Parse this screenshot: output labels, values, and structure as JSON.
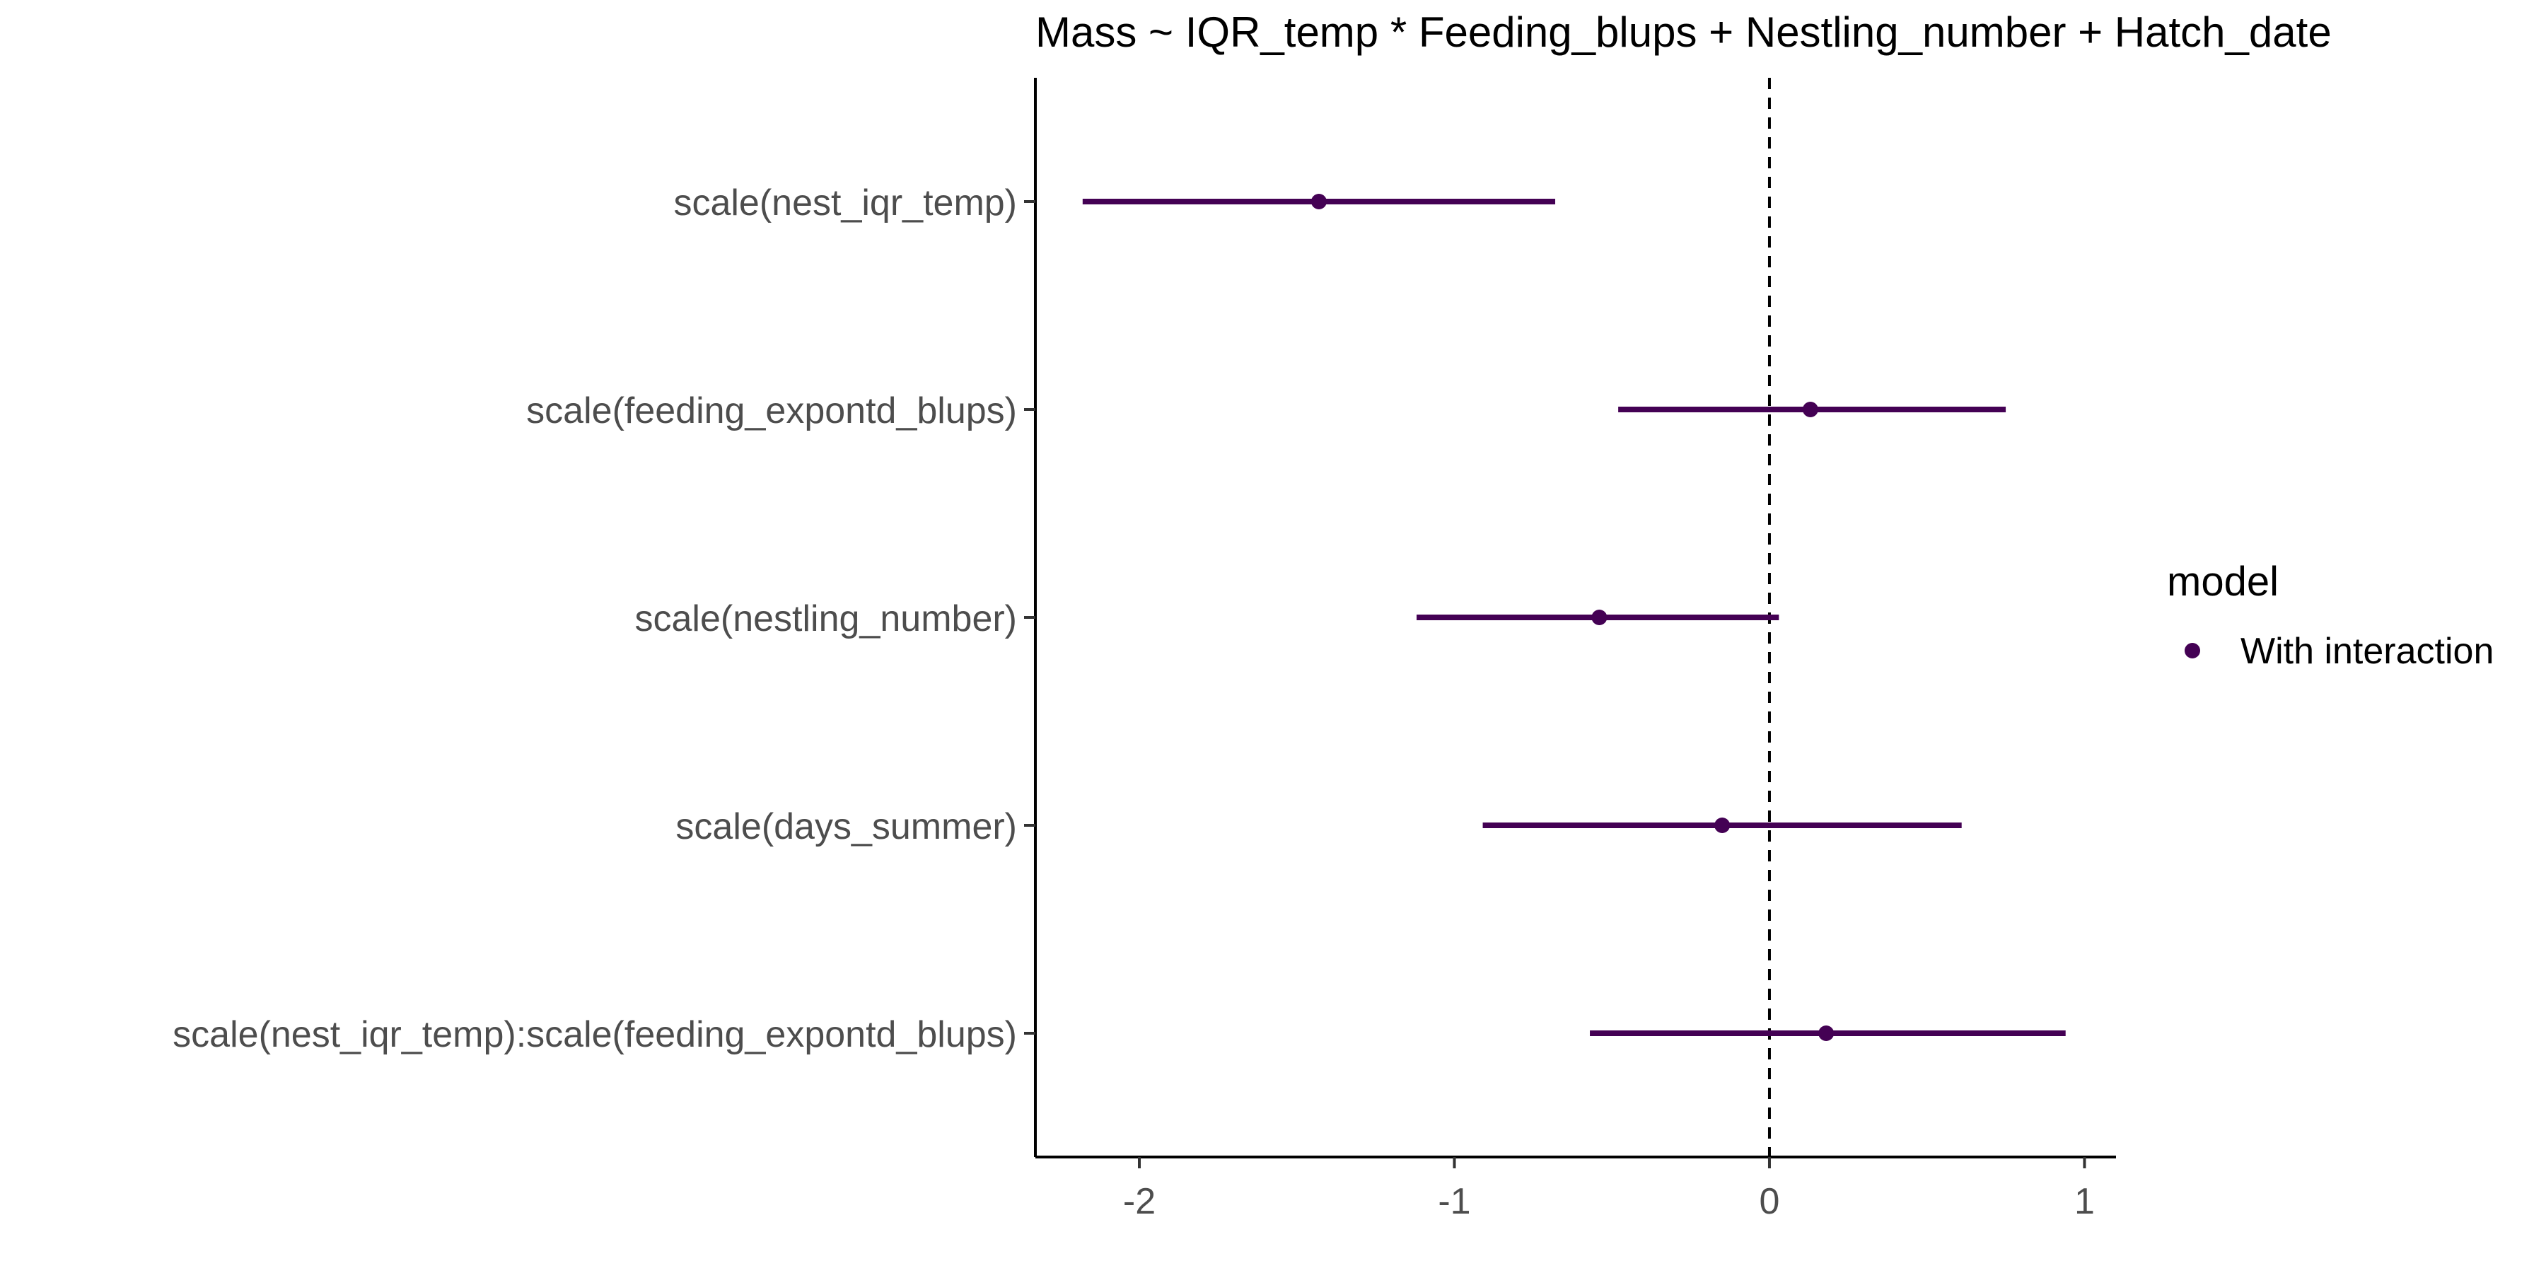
{
  "chart_data": {
    "type": "coefficient-plot",
    "title": "Mass ~ IQR_temp * Feeding_blups + Nestling_number + Hatch_date",
    "xlabel": "",
    "ylabel": "",
    "xlim": [
      -2.33,
      1.1
    ],
    "x_ticks": [
      -2,
      -1,
      0,
      1
    ],
    "x_tick_labels": [
      "-2",
      "-1",
      "0",
      "1"
    ],
    "reference_line": 0,
    "grid": false,
    "legend": {
      "title": "model",
      "position": "right",
      "entries": [
        "With interaction"
      ]
    },
    "series": [
      {
        "name": "With interaction",
        "color": "#440154",
        "points": [
          {
            "term": "scale(nest_iqr_temp)",
            "estimate": -1.43,
            "conf_low": -2.18,
            "conf_high": -0.68
          },
          {
            "term": "scale(feeding_expontd_blups)",
            "estimate": 0.13,
            "conf_low": -0.48,
            "conf_high": 0.75
          },
          {
            "term": "scale(nestling_number)",
            "estimate": -0.54,
            "conf_low": -1.12,
            "conf_high": 0.03
          },
          {
            "term": "scale(days_summer)",
            "estimate": -0.15,
            "conf_low": -0.91,
            "conf_high": 0.61
          },
          {
            "term": "scale(nest_iqr_temp):scale(feeding_expontd_blups)",
            "estimate": 0.18,
            "conf_low": -0.57,
            "conf_high": 0.94
          }
        ]
      }
    ]
  }
}
